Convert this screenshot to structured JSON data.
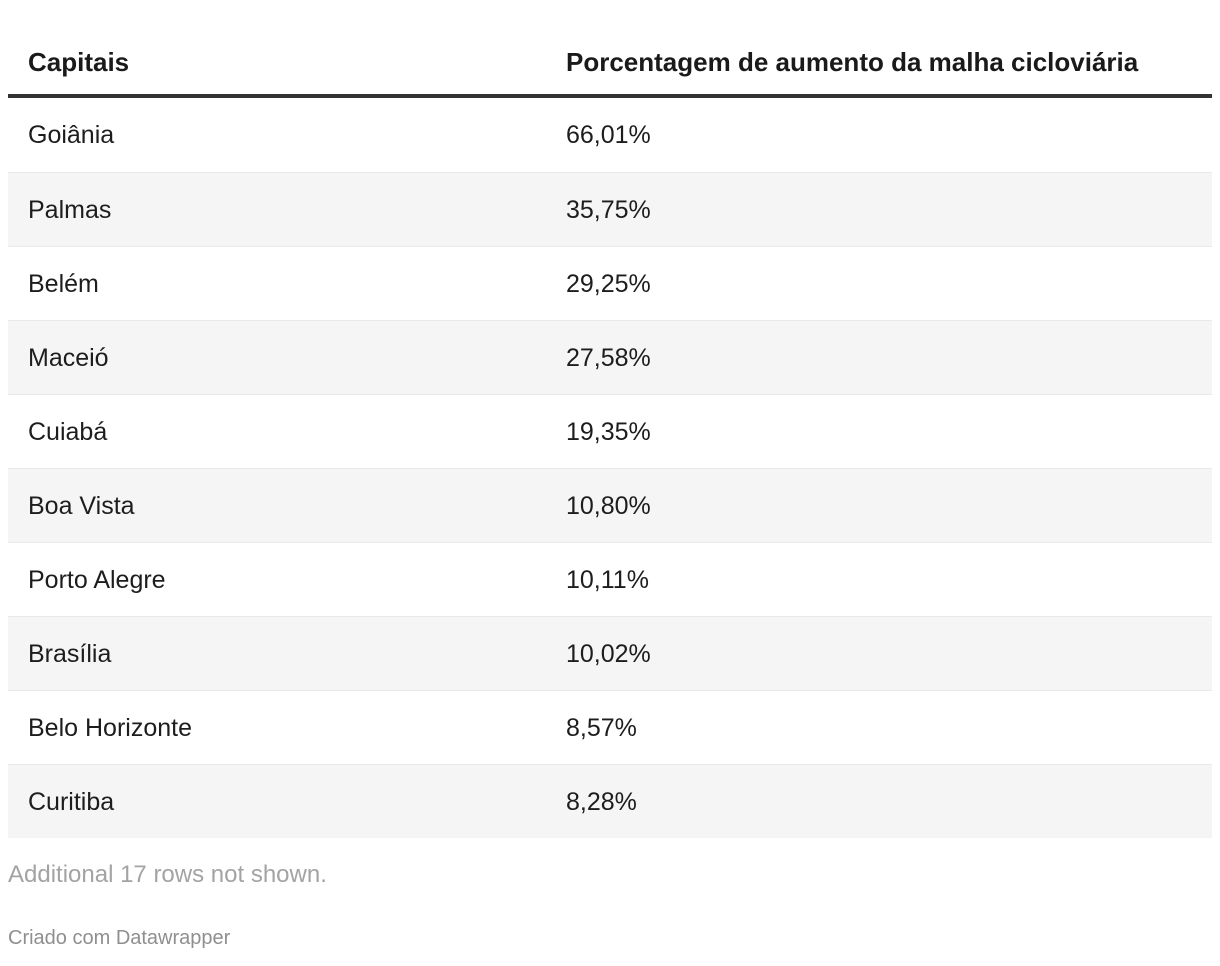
{
  "table": {
    "columns": [
      {
        "label": "Capitais"
      },
      {
        "label": "Porcentagem de aumento da malha cicloviária"
      }
    ],
    "rows": [
      {
        "capital": "Goiânia",
        "value": "66,01%"
      },
      {
        "capital": "Palmas",
        "value": "35,75%"
      },
      {
        "capital": "Belém",
        "value": "29,25%"
      },
      {
        "capital": "Maceió",
        "value": "27,58%"
      },
      {
        "capital": "Cuiabá",
        "value": "19,35%"
      },
      {
        "capital": "Boa Vista",
        "value": "10,80%"
      },
      {
        "capital": "Porto Alegre",
        "value": "10,11%"
      },
      {
        "capital": "Brasília",
        "value": "10,02%"
      },
      {
        "capital": "Belo Horizonte",
        "value": "8,57%"
      },
      {
        "capital": "Curitiba",
        "value": "8,28%"
      }
    ],
    "note": "Additional 17 rows not shown."
  },
  "attribution": "Criado com Datawrapper",
  "colors": {
    "text": "#1d1d1d",
    "header_rule": "#333333",
    "row_stripe": "#f5f5f5",
    "row_separator": "#e9e9e9",
    "note_text": "#a3a3a3",
    "attribution_text": "#8f8f8f",
    "background": "#ffffff"
  },
  "chart_data": {
    "type": "table",
    "columns": [
      "Capitais",
      "Porcentagem de aumento da malha cicloviária"
    ],
    "rows": [
      [
        "Goiânia",
        "66,01%"
      ],
      [
        "Palmas",
        "35,75%"
      ],
      [
        "Belém",
        "29,25%"
      ],
      [
        "Maceió",
        "27,58%"
      ],
      [
        "Cuiabá",
        "19,35%"
      ],
      [
        "Boa Vista",
        "10,80%"
      ],
      [
        "Porto Alegre",
        "10,11%"
      ],
      [
        "Brasília",
        "10,02%"
      ],
      [
        "Belo Horizonte",
        "8,57%"
      ],
      [
        "Curitiba",
        "8,28%"
      ]
    ],
    "values_numeric": [
      66.01,
      35.75,
      29.25,
      27.58,
      19.35,
      10.8,
      10.11,
      10.02,
      8.57,
      8.28
    ],
    "note": "Additional 17 rows not shown.",
    "additional_rows_not_shown": 17,
    "layout_hints": {
      "striped_rows": true,
      "stripe_starts_on_row": 2,
      "value_column_alignment": "left",
      "header_rule": "thick-dark"
    }
  }
}
